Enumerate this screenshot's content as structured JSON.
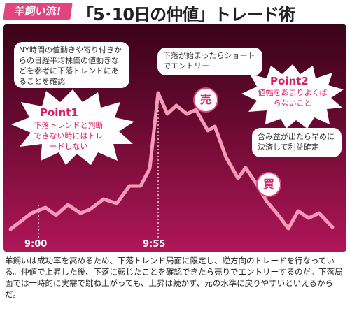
{
  "header": {
    "tag": "羊飼い流!",
    "title": "「5･10日の仲値」トレード術"
  },
  "notes": {
    "ny": "NY時間の値動きや寄り付きからの日経平均株価の値動きなどを参考に下落トレンドにあることを確認",
    "drop_start": "下落が始まったらショートでエントリー",
    "take_profit": "含み益が出たら早めに決済して利益確定"
  },
  "points": {
    "point1_title": "Point1",
    "point1_text": "下落トレンドと判断できない時にはトレードしない",
    "point2_title": "Point2",
    "point2_text": "値幅をあまりよくばらないこと"
  },
  "markers": {
    "sell": "売",
    "buy": "買"
  },
  "times": {
    "t1": "9:00",
    "t2": "9:55"
  },
  "caption": "羊飼いは成功率を高めるため、下落トレンド局面に限定し、逆方向のトレードを行なっている。仲値で上昇した後、下落に転じたことを確認できたら売りでエントリーするのだ。下落局面では一時的に実需で跳ね上がっても、上昇は続かず、元の水準に戻りやすいといえるからだ。",
  "colors": {
    "accent": "#e0457f",
    "line": "#f59ab8",
    "panel_top": "#3a0318",
    "panel_bottom": "#b01658"
  }
}
